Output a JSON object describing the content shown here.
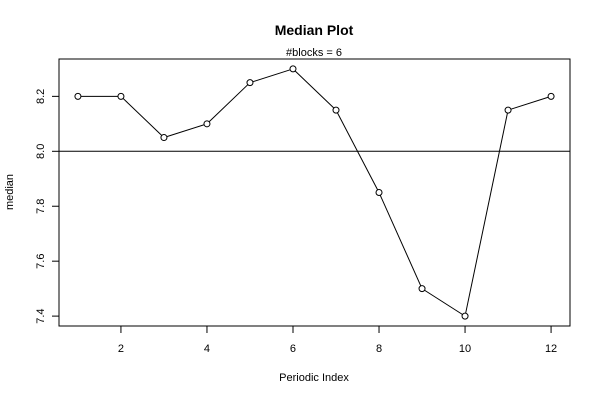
{
  "chart_data": {
    "type": "line",
    "title": "Median Plot",
    "subtitle": "#blocks =  6",
    "xlabel": "Periodic Index",
    "ylabel": "median",
    "x": [
      1,
      2,
      3,
      4,
      5,
      6,
      7,
      8,
      9,
      10,
      11,
      12
    ],
    "series": [
      {
        "values": [
          8.2,
          8.2,
          8.05,
          8.1,
          8.25,
          8.3,
          8.15,
          7.85,
          7.5,
          7.4,
          8.15,
          8.2
        ]
      }
    ],
    "reference_line": {
      "y": 8.0
    },
    "xlim": [
      0.56,
      12.44
    ],
    "ylim": [
      7.364,
      8.336
    ],
    "x_ticks": [
      2,
      4,
      6,
      8,
      10,
      12
    ],
    "y_ticks": [
      7.4,
      7.6,
      7.8,
      8.0,
      8.2
    ],
    "y_tick_labels": [
      "7.4",
      "7.6",
      "7.8",
      "8.0",
      "8.2"
    ],
    "grid": false,
    "marker": "open-circle",
    "colors": {
      "line": "#000000",
      "background": "#ffffff"
    }
  }
}
